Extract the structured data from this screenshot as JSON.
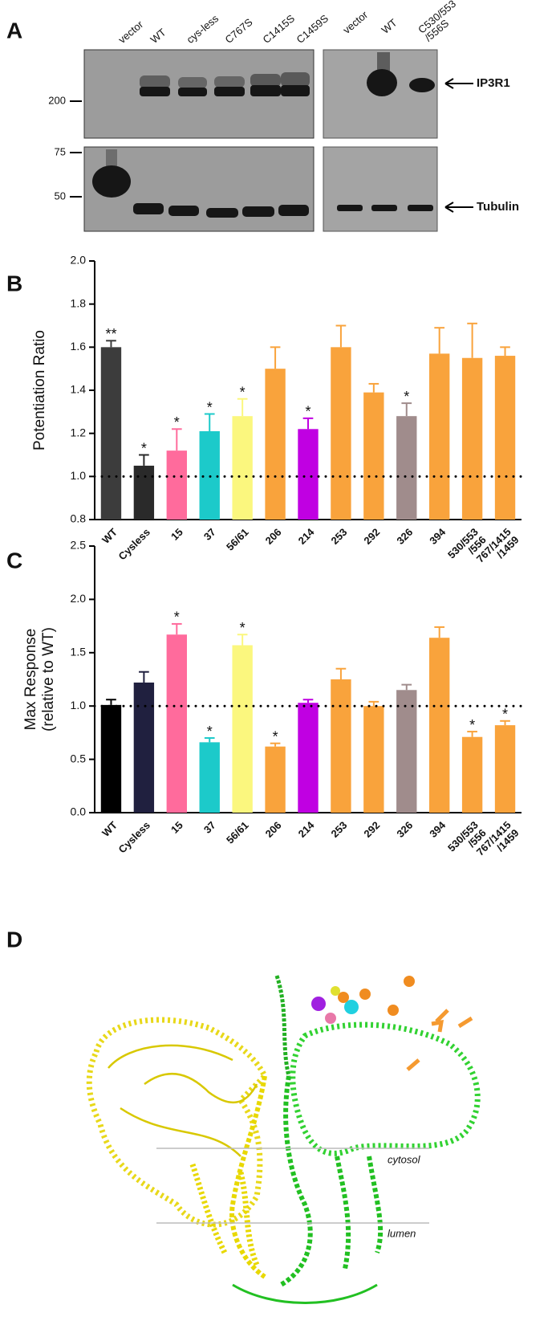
{
  "panel_labels": [
    "A",
    "B",
    "C",
    "D"
  ],
  "blot": {
    "lanes_left": [
      "vector",
      "WT",
      "cys-less",
      "C767S",
      "C1415S",
      "C1459S"
    ],
    "lanes_right": [
      "vector",
      "WT",
      "C530/553\n/556S"
    ],
    "markers": [
      {
        "value": 200,
        "label": "200"
      },
      {
        "value": 75,
        "label": "75"
      },
      {
        "value": 50,
        "label": "50"
      }
    ],
    "bands": [
      "IP3R1",
      "Tubulin"
    ]
  },
  "chart_data": [
    {
      "type": "bar",
      "ylabel": [
        "Potentiation Ratio"
      ],
      "categories": [
        "WT",
        "Cysless",
        "15",
        "37",
        "56/61",
        "206",
        "214",
        "253",
        "292",
        "326",
        "394",
        "530/553\n/556",
        "767/1415\n/1459"
      ],
      "values": [
        1.6,
        1.05,
        1.12,
        1.21,
        1.28,
        1.5,
        1.22,
        1.6,
        1.39,
        1.28,
        1.57,
        1.55,
        1.56
      ],
      "errors": [
        0.03,
        0.05,
        0.1,
        0.08,
        0.08,
        0.1,
        0.05,
        0.1,
        0.04,
        0.06,
        0.12,
        0.16,
        0.04
      ],
      "colors": [
        "#3c3c3c",
        "#2a2a2a",
        "#ff6b9c",
        "#1ccaca",
        "#fbf77e",
        "#f9a33c",
        "#c000e2",
        "#f9a33c",
        "#f9a33c",
        "#a08c8c",
        "#f9a33c",
        "#f9a33c",
        "#f9a33c"
      ],
      "significance": [
        "**",
        "*",
        "*",
        "*",
        "*",
        null,
        "*",
        null,
        null,
        "*",
        null,
        null,
        null
      ],
      "reference_line": 1,
      "ylim": [
        0.8,
        2.0
      ],
      "yticks": [
        0.8,
        {
          "value": 1,
          "label": "1.0"
        },
        1.2,
        1.4,
        1.6,
        1.8,
        {
          "value": 2,
          "label": "2.0"
        }
      ]
    },
    {
      "type": "bar",
      "ylabel": [
        "Max Response",
        "(relative to WT)"
      ],
      "categories": [
        "WT",
        "Cysless",
        "15",
        "37",
        "56/61",
        "206",
        "214",
        "253",
        "292",
        "326",
        "394",
        "530/553\n/556",
        "767/1415\n/1459"
      ],
      "values": [
        1.01,
        1.22,
        1.67,
        0.66,
        1.57,
        0.62,
        1.03,
        1.25,
        1.0,
        1.15,
        1.64,
        0.71,
        0.82
      ],
      "errors": [
        0.05,
        0.1,
        0.1,
        0.04,
        0.1,
        0.03,
        0.03,
        0.1,
        0.04,
        0.05,
        0.1,
        0.05,
        0.04
      ],
      "colors": [
        "#000000",
        "#20203f",
        "#ff6b9c",
        "#1ccaca",
        "#fbf77e",
        "#f9a33c",
        "#c000e2",
        "#f9a33c",
        "#f9a33c",
        "#a08c8c",
        "#f9a33c",
        "#f9a33c",
        "#f9a33c"
      ],
      "significance": [
        null,
        null,
        "*",
        "*",
        "*",
        "*",
        null,
        null,
        null,
        null,
        null,
        "*",
        "*"
      ],
      "reference_line": 1,
      "ylim": [
        0,
        2.5
      ],
      "yticks": [
        {
          "value": 0,
          "label": "0.0"
        },
        0.5,
        {
          "value": 1,
          "label": "1.0"
        },
        1.5,
        {
          "value": 2,
          "label": "2.0"
        },
        2.5
      ]
    }
  ],
  "structure": {
    "labels": [
      "cytosol",
      "lumen"
    ]
  }
}
